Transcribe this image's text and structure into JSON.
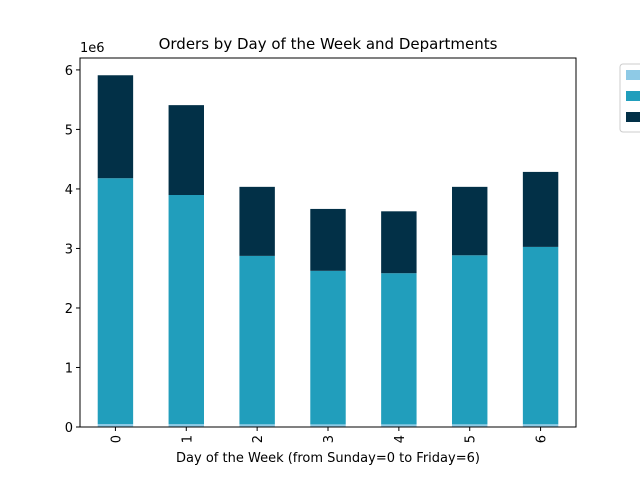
{
  "chart_data": {
    "type": "bar",
    "stacked": true,
    "title": "Orders by Day of the Week and Departments",
    "xlabel": "Day of the Week (from Sunday=0 to Friday=6)",
    "ylabel": "",
    "y_offset_label": "1e6",
    "categories": [
      "0",
      "1",
      "2",
      "3",
      "4",
      "5",
      "6"
    ],
    "ylim": [
      0,
      6200000
    ],
    "yticks": [
      0,
      1000000,
      2000000,
      3000000,
      4000000,
      5000000,
      6000000
    ],
    "ytick_labels": [
      "0",
      "1",
      "2",
      "3",
      "4",
      "5",
      "6"
    ],
    "legend_position": "top-right, outside plot",
    "grid": false,
    "series": [
      {
        "color": "#8ecae6",
        "values": [
          50000,
          48000,
          45000,
          44000,
          44000,
          45000,
          46000
        ]
      },
      {
        "color": "#219ebc",
        "values": [
          4130000,
          3850000,
          2830000,
          2580000,
          2540000,
          2840000,
          2980000
        ]
      },
      {
        "color": "#023047",
        "values": [
          1730000,
          1510000,
          1160000,
          1040000,
          1040000,
          1150000,
          1260000
        ]
      }
    ]
  }
}
